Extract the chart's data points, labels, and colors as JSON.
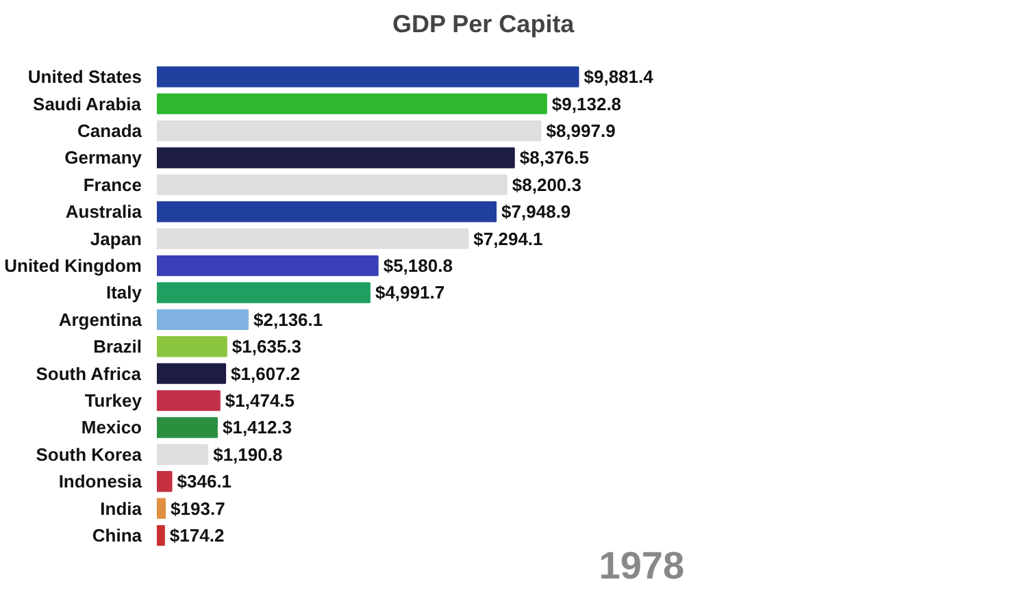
{
  "chart_data": {
    "type": "bar",
    "orientation": "horizontal",
    "title": "GDP Per Capita",
    "categories": [
      "United States",
      "Saudi Arabia",
      "Canada",
      "Germany",
      "France",
      "Australia",
      "Japan",
      "United Kingdom",
      "Italy",
      "Argentina",
      "Brazil",
      "South Africa",
      "Turkey",
      "Mexico",
      "South Korea",
      "Indonesia",
      "India",
      "China"
    ],
    "values": [
      9881.4,
      9132.8,
      8997.9,
      8376.5,
      8200.3,
      7948.9,
      7294.1,
      5180.8,
      4991.7,
      2136.1,
      1635.3,
      1607.2,
      1474.5,
      1412.3,
      1190.8,
      346.1,
      193.7,
      174.2
    ],
    "value_labels": [
      "$9,881.4",
      "$9,132.8",
      "$8,997.9",
      "$8,376.5",
      "$8,200.3",
      "$7,948.9",
      "$7,294.1",
      "$5,180.8",
      "$4,991.7",
      "$2,136.1",
      "$1,635.3",
      "$1,607.2",
      "$1,474.5",
      "$1,412.3",
      "$1,190.8",
      "$346.1",
      "$193.7",
      "$174.2"
    ],
    "colors": [
      "#22409f",
      "#2eb82e",
      "#dedede",
      "#1c1c44",
      "#dedede",
      "#22409f",
      "#dedede",
      "#3a40b8",
      "#20a060",
      "#80b2e2",
      "#8cc63f",
      "#1c1c44",
      "#c2304c",
      "#2a9040",
      "#dedede",
      "#c43040",
      "#e09040",
      "#c83030"
    ],
    "annotations": [
      "1978"
    ],
    "grid": false
  }
}
